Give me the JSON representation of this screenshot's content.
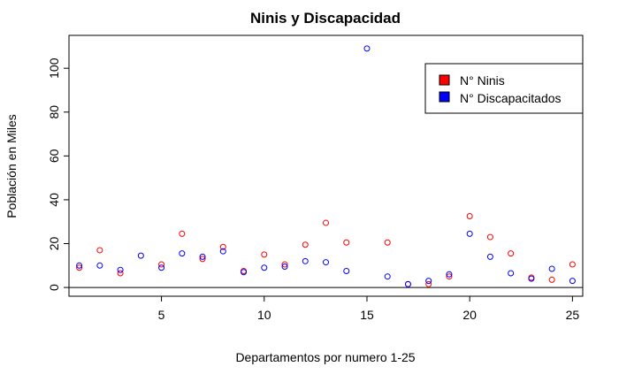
{
  "chart_data": {
    "type": "scatter",
    "title": "Ninis y Discapacidad",
    "xlabel": "Departamentos por numero 1-25",
    "ylabel": "Población en Miles",
    "xlim": [
      0.5,
      25.5
    ],
    "ylim": [
      -4,
      115
    ],
    "xticks": [
      5,
      10,
      15,
      20,
      25
    ],
    "yticks": [
      0,
      20,
      40,
      60,
      80,
      100
    ],
    "hline": 0,
    "grid": false,
    "legend_position": "top-right",
    "x": [
      1,
      2,
      3,
      4,
      5,
      6,
      7,
      8,
      9,
      10,
      11,
      12,
      13,
      14,
      15,
      16,
      17,
      18,
      19,
      20,
      21,
      22,
      23,
      24,
      25
    ],
    "series": [
      {
        "name": "N° Ninis",
        "color": "#ff0000",
        "values": [
          9,
          17,
          6.5,
          null,
          10.5,
          24.5,
          13,
          18.5,
          7.5,
          15,
          10.5,
          19.5,
          29.5,
          20.5,
          null,
          20.5,
          1.5,
          1.5,
          5,
          32.5,
          23,
          15.5,
          4.5,
          3.5,
          10.5
        ]
      },
      {
        "name": "N° Discapacitados",
        "color": "#0000ff",
        "values": [
          10,
          10,
          8,
          14.5,
          9,
          15.5,
          14,
          16.5,
          7,
          9,
          9.5,
          12,
          11.5,
          7.5,
          109,
          5,
          1.5,
          3,
          6,
          24.5,
          14,
          6.5,
          4,
          8.5,
          3
        ]
      }
    ]
  }
}
